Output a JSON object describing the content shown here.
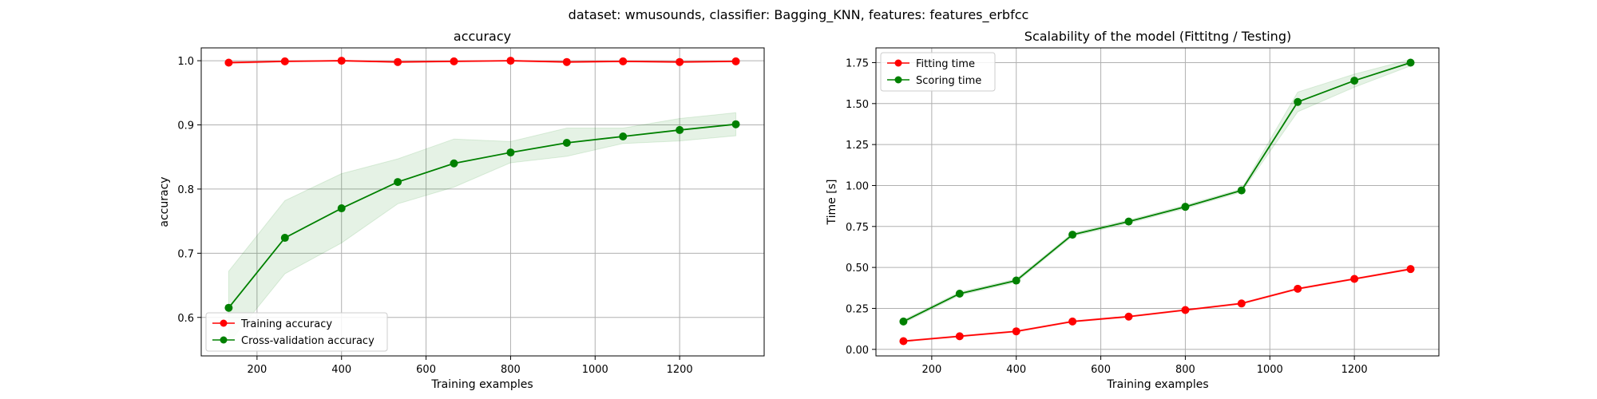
{
  "figure": {
    "suptitle": "dataset: wmusounds, classifier: Bagging_KNN, features: features_erbfcc"
  },
  "chart_data": [
    {
      "type": "line",
      "title": "accuracy",
      "xlabel": "Training examples",
      "ylabel": "accuracy",
      "xlim": [
        68,
        1400
      ],
      "ylim": [
        0.54,
        1.02
      ],
      "xticks": [
        200,
        400,
        600,
        800,
        1000,
        1200
      ],
      "yticks": [
        0.6,
        0.7,
        0.8,
        0.9,
        1.0
      ],
      "ytick_labels": [
        "0.6",
        "0.7",
        "0.8",
        "0.9",
        "1.0"
      ],
      "grid": true,
      "legend_position": "lower left",
      "x": [
        133,
        266,
        400,
        533,
        666,
        800,
        933,
        1066,
        1200,
        1333
      ],
      "series": [
        {
          "name": "Training accuracy",
          "color": "#ff0000",
          "values": [
            0.997,
            0.999,
            1.0,
            0.998,
            0.999,
            1.0,
            0.998,
            0.999,
            0.998,
            0.999
          ],
          "band_lower": [
            0.995,
            0.998,
            0.999,
            0.997,
            0.998,
            0.999,
            0.997,
            0.998,
            0.997,
            0.998
          ],
          "band_upper": [
            0.999,
            1.0,
            1.0,
            0.999,
            1.0,
            1.0,
            0.999,
            1.0,
            0.999,
            1.0
          ],
          "band_color": "#ff0000"
        },
        {
          "name": "Cross-validation accuracy",
          "color": "#008000",
          "values": [
            0.615,
            0.724,
            0.77,
            0.811,
            0.84,
            0.857,
            0.872,
            0.882,
            0.892,
            0.901
          ],
          "band_lower": [
            0.56,
            0.668,
            0.716,
            0.777,
            0.803,
            0.841,
            0.851,
            0.871,
            0.875,
            0.883
          ],
          "band_upper": [
            0.672,
            0.782,
            0.824,
            0.847,
            0.878,
            0.874,
            0.895,
            0.895,
            0.91,
            0.919
          ],
          "band_color": "#008000"
        }
      ]
    },
    {
      "type": "line",
      "title": "Scalability of the model (Fittitng / Testing)",
      "xlabel": "Training examples",
      "ylabel": "Time [s]",
      "xlim": [
        68,
        1400
      ],
      "ylim": [
        -0.04,
        1.84
      ],
      "xticks": [
        200,
        400,
        600,
        800,
        1000,
        1200
      ],
      "yticks": [
        0.0,
        0.25,
        0.5,
        0.75,
        1.0,
        1.25,
        1.5,
        1.75
      ],
      "ytick_labels": [
        "0.00",
        "0.25",
        "0.50",
        "0.75",
        "1.00",
        "1.25",
        "1.50",
        "1.75"
      ],
      "grid": true,
      "legend_position": "upper left",
      "x": [
        133,
        266,
        400,
        533,
        666,
        800,
        933,
        1066,
        1200,
        1333
      ],
      "series": [
        {
          "name": "Fitting time",
          "color": "#ff0000",
          "values": [
            0.05,
            0.08,
            0.11,
            0.17,
            0.2,
            0.24,
            0.28,
            0.37,
            0.43,
            0.49
          ],
          "band_lower": [
            0.045,
            0.075,
            0.105,
            0.165,
            0.195,
            0.235,
            0.275,
            0.365,
            0.425,
            0.485
          ],
          "band_upper": [
            0.055,
            0.085,
            0.115,
            0.175,
            0.205,
            0.245,
            0.285,
            0.375,
            0.435,
            0.495
          ],
          "band_color": "#ff0000"
        },
        {
          "name": "Scoring time",
          "color": "#008000",
          "values": [
            0.17,
            0.34,
            0.42,
            0.7,
            0.78,
            0.87,
            0.97,
            1.51,
            1.64,
            1.75
          ],
          "band_lower": [
            0.16,
            0.33,
            0.41,
            0.69,
            0.77,
            0.86,
            0.96,
            1.45,
            1.6,
            1.73
          ],
          "band_upper": [
            0.18,
            0.35,
            0.43,
            0.71,
            0.79,
            0.88,
            0.98,
            1.57,
            1.68,
            1.77
          ],
          "band_color": "#008000"
        }
      ]
    }
  ]
}
